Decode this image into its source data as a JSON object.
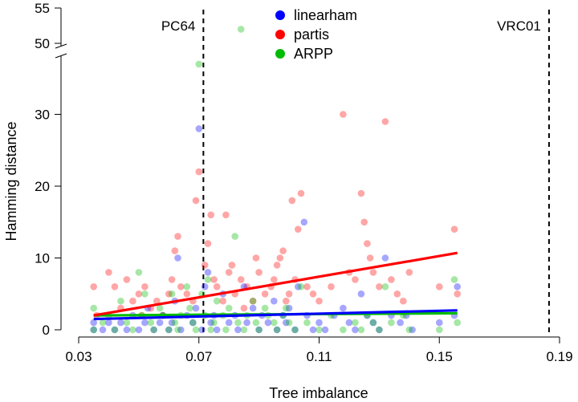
{
  "chart_data": {
    "type": "scatter",
    "xlabel": "Tree imbalance",
    "ylabel": "Hamming distance",
    "xlim": [
      0.03,
      0.19
    ],
    "ylim_lower": [
      0,
      37
    ],
    "ylim_upper": [
      49,
      55
    ],
    "axis_break": true,
    "x_ticks": [
      "0.03",
      "0.07",
      "0.11",
      "0.15",
      "0.19"
    ],
    "y_ticks": [
      "0",
      "10",
      "20",
      "30",
      "50",
      "55"
    ],
    "grid": false,
    "legend_position": "top-center",
    "vertical_lines": [
      {
        "label": "PC64",
        "x": 0.0715
      },
      {
        "label": "VRC01",
        "x": 0.1865
      }
    ],
    "series": [
      {
        "name": "linearham",
        "color": "#0000ff",
        "trend": [
          [
            0.035,
            1.5
          ],
          [
            0.156,
            2.7
          ]
        ],
        "points": [
          [
            0.035,
            0
          ],
          [
            0.035,
            1
          ],
          [
            0.038,
            0
          ],
          [
            0.04,
            1
          ],
          [
            0.042,
            0
          ],
          [
            0.044,
            1
          ],
          [
            0.046,
            0
          ],
          [
            0.048,
            2
          ],
          [
            0.05,
            0
          ],
          [
            0.052,
            1
          ],
          [
            0.053,
            3
          ],
          [
            0.055,
            0
          ],
          [
            0.057,
            1
          ],
          [
            0.058,
            2
          ],
          [
            0.06,
            0
          ],
          [
            0.061,
            1
          ],
          [
            0.062,
            4
          ],
          [
            0.063,
            10
          ],
          [
            0.064,
            0
          ],
          [
            0.066,
            2
          ],
          [
            0.068,
            1
          ],
          [
            0.069,
            3
          ],
          [
            0.07,
            28
          ],
          [
            0.071,
            0
          ],
          [
            0.072,
            6
          ],
          [
            0.073,
            8
          ],
          [
            0.074,
            1
          ],
          [
            0.075,
            2
          ],
          [
            0.076,
            0
          ],
          [
            0.078,
            5
          ],
          [
            0.08,
            1
          ],
          [
            0.082,
            2
          ],
          [
            0.083,
            0
          ],
          [
            0.085,
            6
          ],
          [
            0.086,
            1
          ],
          [
            0.088,
            3
          ],
          [
            0.09,
            0
          ],
          [
            0.091,
            2
          ],
          [
            0.093,
            1
          ],
          [
            0.095,
            4
          ],
          [
            0.096,
            0
          ],
          [
            0.098,
            2
          ],
          [
            0.099,
            1
          ],
          [
            0.1,
            3
          ],
          [
            0.102,
            0
          ],
          [
            0.103,
            6
          ],
          [
            0.105,
            15
          ],
          [
            0.106,
            2
          ],
          [
            0.108,
            0
          ],
          [
            0.11,
            1
          ],
          [
            0.112,
            0
          ],
          [
            0.115,
            2
          ],
          [
            0.118,
            3
          ],
          [
            0.12,
            1
          ],
          [
            0.122,
            0
          ],
          [
            0.124,
            5
          ],
          [
            0.126,
            2
          ],
          [
            0.128,
            1
          ],
          [
            0.13,
            0
          ],
          [
            0.132,
            10
          ],
          [
            0.134,
            2
          ],
          [
            0.137,
            1
          ],
          [
            0.139,
            2
          ],
          [
            0.141,
            0
          ],
          [
            0.15,
            1
          ],
          [
            0.155,
            2
          ],
          [
            0.156,
            6
          ]
        ]
      },
      {
        "name": "partis",
        "color": "#ff0000",
        "trend": [
          [
            0.035,
            2.0
          ],
          [
            0.156,
            10.7
          ]
        ],
        "points": [
          [
            0.035,
            6
          ],
          [
            0.036,
            2
          ],
          [
            0.04,
            8
          ],
          [
            0.042,
            6
          ],
          [
            0.044,
            3
          ],
          [
            0.046,
            7
          ],
          [
            0.048,
            4
          ],
          [
            0.05,
            5
          ],
          [
            0.051,
            2
          ],
          [
            0.052,
            6
          ],
          [
            0.054,
            3
          ],
          [
            0.056,
            4
          ],
          [
            0.058,
            2
          ],
          [
            0.06,
            5
          ],
          [
            0.061,
            7
          ],
          [
            0.062,
            11
          ],
          [
            0.063,
            13
          ],
          [
            0.064,
            6
          ],
          [
            0.066,
            5
          ],
          [
            0.068,
            4
          ],
          [
            0.069,
            18
          ],
          [
            0.07,
            22
          ],
          [
            0.072,
            9
          ],
          [
            0.073,
            12
          ],
          [
            0.074,
            16
          ],
          [
            0.075,
            7
          ],
          [
            0.076,
            6
          ],
          [
            0.078,
            4
          ],
          [
            0.079,
            16
          ],
          [
            0.08,
            8
          ],
          [
            0.081,
            9
          ],
          [
            0.082,
            5
          ],
          [
            0.084,
            7
          ],
          [
            0.085,
            3
          ],
          [
            0.086,
            6
          ],
          [
            0.088,
            4
          ],
          [
            0.089,
            10
          ],
          [
            0.09,
            8
          ],
          [
            0.092,
            5
          ],
          [
            0.094,
            6
          ],
          [
            0.095,
            7
          ],
          [
            0.096,
            9
          ],
          [
            0.097,
            10
          ],
          [
            0.098,
            11
          ],
          [
            0.099,
            4
          ],
          [
            0.1,
            5
          ],
          [
            0.101,
            18
          ],
          [
            0.102,
            7
          ],
          [
            0.103,
            14
          ],
          [
            0.104,
            19
          ],
          [
            0.106,
            6
          ],
          [
            0.108,
            5
          ],
          [
            0.11,
            4
          ],
          [
            0.114,
            6
          ],
          [
            0.118,
            30
          ],
          [
            0.12,
            8
          ],
          [
            0.122,
            7
          ],
          [
            0.124,
            19
          ],
          [
            0.125,
            15
          ],
          [
            0.126,
            12
          ],
          [
            0.127,
            10
          ],
          [
            0.128,
            8
          ],
          [
            0.13,
            6
          ],
          [
            0.132,
            29
          ],
          [
            0.134,
            7
          ],
          [
            0.136,
            5
          ],
          [
            0.138,
            4
          ],
          [
            0.14,
            8
          ],
          [
            0.15,
            6
          ],
          [
            0.155,
            14
          ],
          [
            0.156,
            5
          ]
        ]
      },
      {
        "name": "ARPP",
        "color": "#00bb00",
        "trend": [
          [
            0.035,
            2.0
          ],
          [
            0.156,
            2.3
          ]
        ],
        "points": [
          [
            0.035,
            0
          ],
          [
            0.035,
            3
          ],
          [
            0.038,
            1
          ],
          [
            0.04,
            2
          ],
          [
            0.042,
            0
          ],
          [
            0.044,
            4
          ],
          [
            0.046,
            1
          ],
          [
            0.048,
            0
          ],
          [
            0.05,
            8
          ],
          [
            0.051,
            2
          ],
          [
            0.052,
            5
          ],
          [
            0.054,
            1
          ],
          [
            0.055,
            0
          ],
          [
            0.057,
            3
          ],
          [
            0.058,
            2
          ],
          [
            0.06,
            0
          ],
          [
            0.061,
            5
          ],
          [
            0.062,
            1
          ],
          [
            0.063,
            0
          ],
          [
            0.064,
            2
          ],
          [
            0.066,
            6
          ],
          [
            0.067,
            3
          ],
          [
            0.068,
            1
          ],
          [
            0.069,
            0
          ],
          [
            0.07,
            37
          ],
          [
            0.071,
            5
          ],
          [
            0.072,
            2
          ],
          [
            0.073,
            7
          ],
          [
            0.074,
            0
          ],
          [
            0.075,
            1
          ],
          [
            0.076,
            4
          ],
          [
            0.078,
            2
          ],
          [
            0.079,
            0
          ],
          [
            0.08,
            3
          ],
          [
            0.082,
            13
          ],
          [
            0.083,
            1
          ],
          [
            0.084,
            52
          ],
          [
            0.085,
            0
          ],
          [
            0.086,
            2
          ],
          [
            0.088,
            4
          ],
          [
            0.089,
            1
          ],
          [
            0.09,
            0
          ],
          [
            0.092,
            3
          ],
          [
            0.093,
            2
          ],
          [
            0.095,
            1
          ],
          [
            0.096,
            0
          ],
          [
            0.098,
            2
          ],
          [
            0.099,
            3
          ],
          [
            0.1,
            1
          ],
          [
            0.102,
            0
          ],
          [
            0.104,
            6
          ],
          [
            0.106,
            1
          ],
          [
            0.11,
            0
          ],
          [
            0.114,
            2
          ],
          [
            0.118,
            0
          ],
          [
            0.122,
            1
          ],
          [
            0.124,
            0
          ],
          [
            0.126,
            2
          ],
          [
            0.128,
            1
          ],
          [
            0.13,
            0
          ],
          [
            0.132,
            6
          ],
          [
            0.134,
            1
          ],
          [
            0.138,
            2
          ],
          [
            0.14,
            0
          ],
          [
            0.15,
            0
          ],
          [
            0.155,
            7
          ],
          [
            0.156,
            1
          ]
        ]
      }
    ]
  }
}
